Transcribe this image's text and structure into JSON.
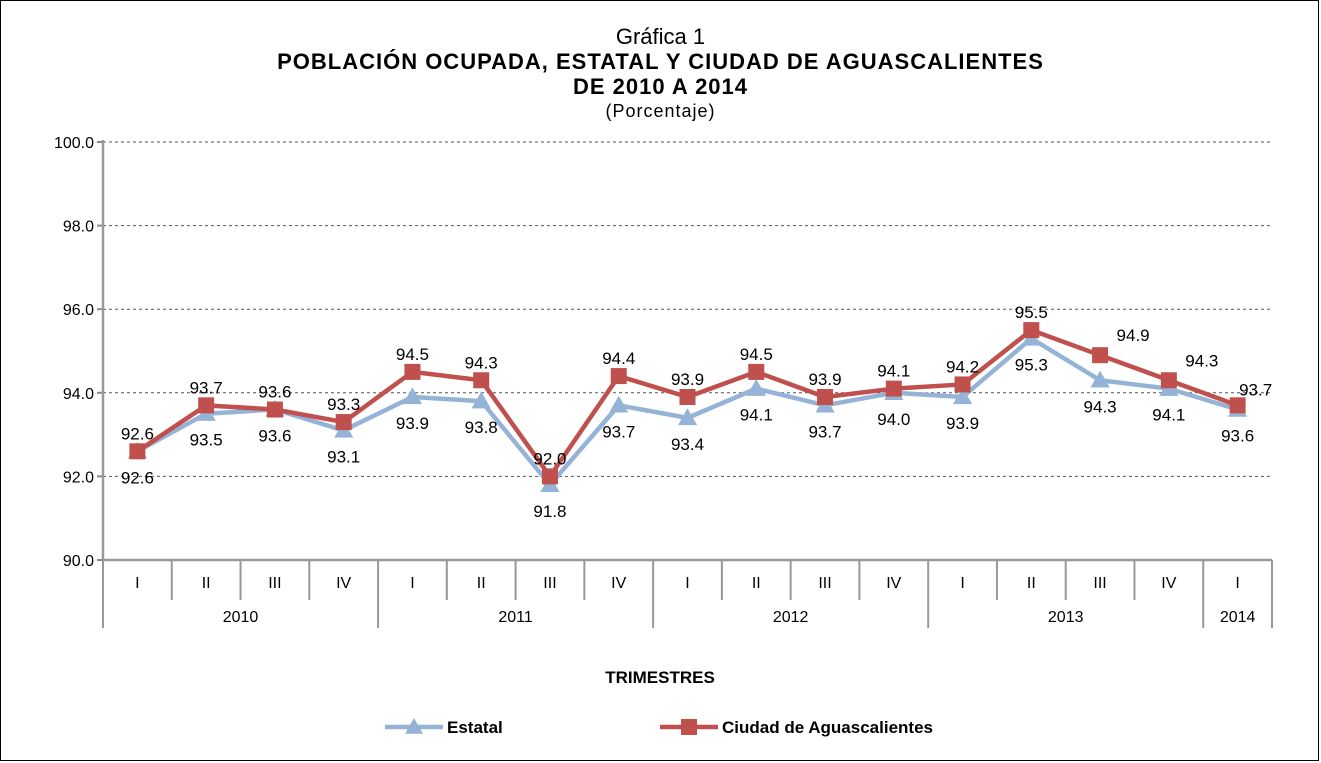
{
  "chart_data": {
    "type": "line",
    "title": "Gráfica 1",
    "title_lines": [
      "POBLACIÓN OCUPADA,  ESTATAL Y CIUDAD  DE AGUASCALIENTES",
      "DE 2010  A 2014"
    ],
    "subtitle": "(Porcentaje)",
    "xlabel": "TRIMESTRES",
    "ylabel": "",
    "ylim": [
      90.0,
      100.0
    ],
    "yticks": [
      "90.0",
      "92.0",
      "94.0",
      "96.0",
      "98.0",
      "100.0"
    ],
    "grid": true,
    "legend_position": "bottom",
    "categories": [
      "I",
      "II",
      "III",
      "IV",
      "I",
      "II",
      "III",
      "IV",
      "I",
      "II",
      "III",
      "IV",
      "I",
      "II",
      "III",
      "IV",
      "I"
    ],
    "years": [
      {
        "label": "2010",
        "count": 4
      },
      {
        "label": "2011",
        "count": 4
      },
      {
        "label": "2012",
        "count": 4
      },
      {
        "label": "2013",
        "count": 4
      },
      {
        "label": "2014",
        "count": 1
      }
    ],
    "series": [
      {
        "name": "Estatal",
        "color": "#95B3D7",
        "marker": "triangle",
        "values": [
          92.6,
          93.5,
          93.6,
          93.1,
          93.9,
          93.8,
          91.8,
          93.7,
          93.4,
          94.1,
          93.7,
          94.0,
          93.9,
          95.3,
          94.3,
          94.1,
          93.6
        ],
        "labels": [
          "92.6",
          "93.5",
          "93.6",
          "93.1",
          "93.9",
          "93.8",
          "91.8",
          "93.7",
          "93.4",
          "94.1",
          "93.7",
          "94.0",
          "93.9",
          "95.3",
          "94.3",
          "94.1",
          "93.6"
        ]
      },
      {
        "name": "Ciudad de Aguascalientes",
        "color": "#C0504D",
        "marker": "square",
        "values": [
          92.6,
          93.7,
          93.6,
          93.3,
          94.5,
          94.3,
          92.0,
          94.4,
          93.9,
          94.5,
          93.9,
          94.1,
          94.2,
          95.5,
          94.9,
          94.3,
          93.7
        ],
        "labels": [
          "92.6",
          "93.7",
          "93.6",
          "93.3",
          "94.5",
          "94.3",
          "92.0",
          "94.4",
          "93.9",
          "94.5",
          "93.9",
          "94.1",
          "94.2",
          "95.5",
          "94.9",
          "94.3",
          "93.7"
        ]
      }
    ]
  }
}
